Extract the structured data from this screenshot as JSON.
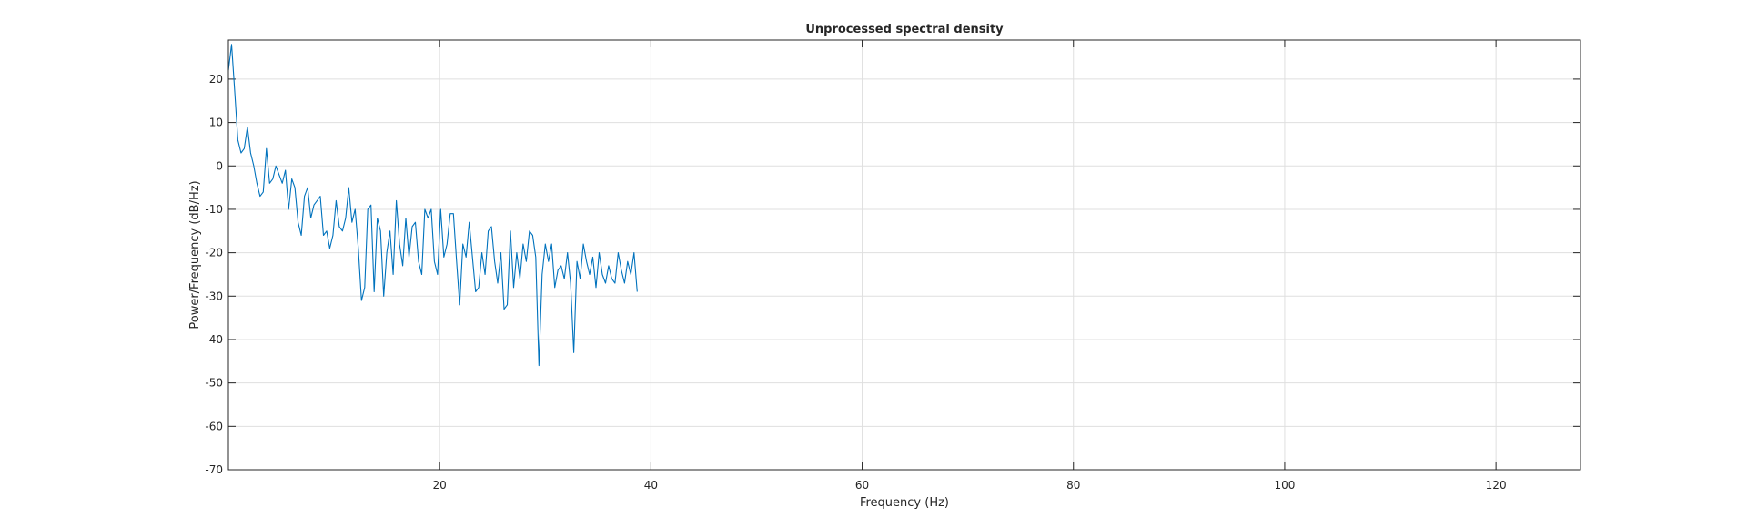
{
  "chart_data": {
    "type": "line",
    "title": "Unprocessed spectral density",
    "xlabel": "Frequency (Hz)",
    "ylabel": "Power/Frequency (dB/Hz)",
    "xlim": [
      0,
      128
    ],
    "ylim": [
      -70,
      29
    ],
    "xticks": [
      20,
      40,
      60,
      80,
      100,
      120
    ],
    "yticks": [
      20,
      10,
      0,
      -10,
      -20,
      -30,
      -40,
      -50,
      -60,
      -70
    ],
    "grid": true,
    "series": [
      {
        "color": "#0072BD",
        "points": [
          [
            0.0,
            22
          ],
          [
            0.3,
            28
          ],
          [
            0.6,
            17
          ],
          [
            0.9,
            6
          ],
          [
            1.2,
            3
          ],
          [
            1.5,
            4
          ],
          [
            1.8,
            9
          ],
          [
            2.1,
            3
          ],
          [
            2.4,
            0
          ],
          [
            2.7,
            -4
          ],
          [
            3.0,
            -7
          ],
          [
            3.3,
            -6
          ],
          [
            3.6,
            4
          ],
          [
            3.9,
            -4
          ],
          [
            4.2,
            -3
          ],
          [
            4.5,
            0
          ],
          [
            4.8,
            -2
          ],
          [
            5.1,
            -4
          ],
          [
            5.4,
            -1
          ],
          [
            5.7,
            -10
          ],
          [
            6.0,
            -3
          ],
          [
            6.3,
            -5
          ],
          [
            6.6,
            -13
          ],
          [
            6.9,
            -16
          ],
          [
            7.2,
            -7
          ],
          [
            7.5,
            -5
          ],
          [
            7.8,
            -12
          ],
          [
            8.1,
            -9
          ],
          [
            8.4,
            -8
          ],
          [
            8.7,
            -7
          ],
          [
            9.0,
            -16
          ],
          [
            9.3,
            -15
          ],
          [
            9.6,
            -19
          ],
          [
            9.9,
            -16
          ],
          [
            10.2,
            -8
          ],
          [
            10.5,
            -14
          ],
          [
            10.8,
            -15
          ],
          [
            11.1,
            -12
          ],
          [
            11.4,
            -5
          ],
          [
            11.7,
            -13
          ],
          [
            12.0,
            -10
          ],
          [
            12.3,
            -19
          ],
          [
            12.6,
            -31
          ],
          [
            12.9,
            -28
          ],
          [
            13.2,
            -10
          ],
          [
            13.5,
            -9
          ],
          [
            13.8,
            -29
          ],
          [
            14.1,
            -12
          ],
          [
            14.4,
            -15
          ],
          [
            14.7,
            -30
          ],
          [
            15.0,
            -20
          ],
          [
            15.3,
            -15
          ],
          [
            15.6,
            -25
          ],
          [
            15.9,
            -8
          ],
          [
            16.2,
            -18
          ],
          [
            16.5,
            -23
          ],
          [
            16.8,
            -12
          ],
          [
            17.1,
            -21
          ],
          [
            17.4,
            -14
          ],
          [
            17.7,
            -13
          ],
          [
            18.0,
            -22
          ],
          [
            18.3,
            -25
          ],
          [
            18.6,
            -10
          ],
          [
            18.9,
            -12
          ],
          [
            19.2,
            -10
          ],
          [
            19.5,
            -22
          ],
          [
            19.8,
            -25
          ],
          [
            20.1,
            -10
          ],
          [
            20.4,
            -21
          ],
          [
            20.7,
            -18
          ],
          [
            21.0,
            -11
          ],
          [
            21.3,
            -11
          ],
          [
            21.6,
            -22
          ],
          [
            21.9,
            -32
          ],
          [
            22.2,
            -18
          ],
          [
            22.5,
            -21
          ],
          [
            22.8,
            -13
          ],
          [
            23.1,
            -21
          ],
          [
            23.4,
            -29
          ],
          [
            23.7,
            -28
          ],
          [
            24.0,
            -20
          ],
          [
            24.3,
            -25
          ],
          [
            24.6,
            -15
          ],
          [
            24.9,
            -14
          ],
          [
            25.2,
            -22
          ],
          [
            25.5,
            -27
          ],
          [
            25.8,
            -20
          ],
          [
            26.1,
            -33
          ],
          [
            26.4,
            -32
          ],
          [
            26.7,
            -15
          ],
          [
            27.0,
            -28
          ],
          [
            27.3,
            -20
          ],
          [
            27.6,
            -26
          ],
          [
            27.9,
            -18
          ],
          [
            28.2,
            -22
          ],
          [
            28.5,
            -15
          ],
          [
            28.8,
            -16
          ],
          [
            29.1,
            -21
          ],
          [
            29.4,
            -46
          ],
          [
            29.7,
            -25
          ],
          [
            30.0,
            -18
          ],
          [
            30.3,
            -22
          ],
          [
            30.6,
            -18
          ],
          [
            30.9,
            -28
          ],
          [
            31.2,
            -24
          ],
          [
            31.5,
            -23
          ],
          [
            31.8,
            -26
          ],
          [
            32.1,
            -20
          ],
          [
            32.4,
            -27
          ],
          [
            32.7,
            -43
          ],
          [
            33.0,
            -22
          ],
          [
            33.3,
            -26
          ],
          [
            33.6,
            -18
          ],
          [
            33.9,
            -22
          ],
          [
            34.2,
            -25
          ],
          [
            34.5,
            -21
          ],
          [
            34.8,
            -28
          ],
          [
            35.1,
            -20
          ],
          [
            35.4,
            -25
          ],
          [
            35.7,
            -27
          ],
          [
            36.0,
            -23
          ],
          [
            36.3,
            -26
          ],
          [
            36.6,
            -27
          ],
          [
            36.9,
            -20
          ],
          [
            37.2,
            -24
          ],
          [
            37.5,
            -27
          ],
          [
            37.8,
            -22
          ],
          [
            38.1,
            -25
          ],
          [
            38.4,
            -20
          ],
          [
            38.7,
            -29
          ]
        ]
      }
    ]
  }
}
